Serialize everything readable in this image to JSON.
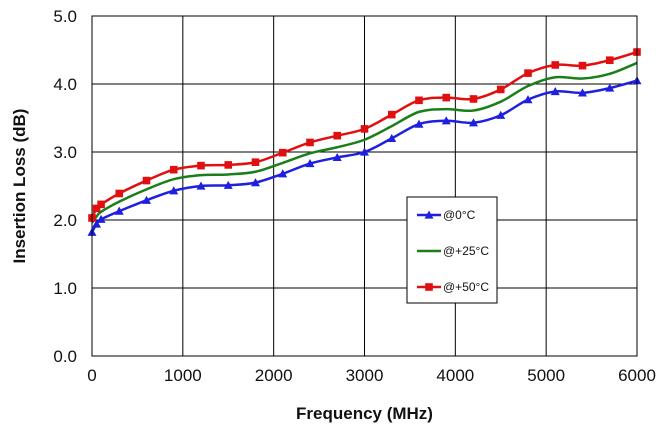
{
  "chart_data": {
    "type": "line",
    "xlabel": "Frequency (MHz)",
    "ylabel": "Insertion Loss (dB)",
    "xlim": [
      0,
      6000
    ],
    "ylim": [
      0.0,
      5.0
    ],
    "x_ticks": [
      "0",
      "1000",
      "2000",
      "3000",
      "4000",
      "5000",
      "6000"
    ],
    "y_ticks": [
      "0.0",
      "1.0",
      "2.0",
      "3.0",
      "4.0",
      "5.0"
    ],
    "grid": true,
    "legend_position": "center-right",
    "series": [
      {
        "name": "@0°C",
        "color": "#1f1fe0",
        "marker": "triangle",
        "x": [
          0,
          50,
          100,
          300,
          600,
          900,
          1200,
          1500,
          1800,
          2100,
          2400,
          2700,
          3000,
          3300,
          3600,
          3900,
          4200,
          4500,
          4800,
          5100,
          5400,
          5700,
          6000
        ],
        "y": [
          1.82,
          1.94,
          2.01,
          2.13,
          2.29,
          2.43,
          2.5,
          2.51,
          2.55,
          2.68,
          2.83,
          2.92,
          3.0,
          3.2,
          3.41,
          3.46,
          3.43,
          3.54,
          3.77,
          3.89,
          3.87,
          3.94,
          4.05
        ]
      },
      {
        "name": "@+25°C",
        "color": "#1a7f1a",
        "marker": "none",
        "x": [
          0,
          50,
          100,
          300,
          600,
          900,
          1200,
          1500,
          1800,
          2100,
          2400,
          2700,
          3000,
          3300,
          3600,
          3900,
          4200,
          4500,
          4800,
          5100,
          5400,
          5700,
          6000
        ],
        "y": [
          1.96,
          2.05,
          2.12,
          2.27,
          2.45,
          2.6,
          2.66,
          2.67,
          2.71,
          2.84,
          2.98,
          3.07,
          3.18,
          3.38,
          3.59,
          3.63,
          3.61,
          3.74,
          3.97,
          4.1,
          4.08,
          4.15,
          4.31
        ]
      },
      {
        "name": "@+50°C",
        "color": "#e01010",
        "marker": "square",
        "x": [
          0,
          50,
          100,
          300,
          600,
          900,
          1200,
          1500,
          1800,
          2100,
          2400,
          2700,
          3000,
          3300,
          3600,
          3900,
          4200,
          4500,
          4800,
          5100,
          5400,
          5700,
          6000
        ],
        "y": [
          2.03,
          2.17,
          2.23,
          2.39,
          2.58,
          2.74,
          2.8,
          2.81,
          2.85,
          2.99,
          3.14,
          3.24,
          3.34,
          3.55,
          3.76,
          3.8,
          3.78,
          3.92,
          4.16,
          4.28,
          4.27,
          4.35,
          4.47
        ]
      }
    ]
  }
}
